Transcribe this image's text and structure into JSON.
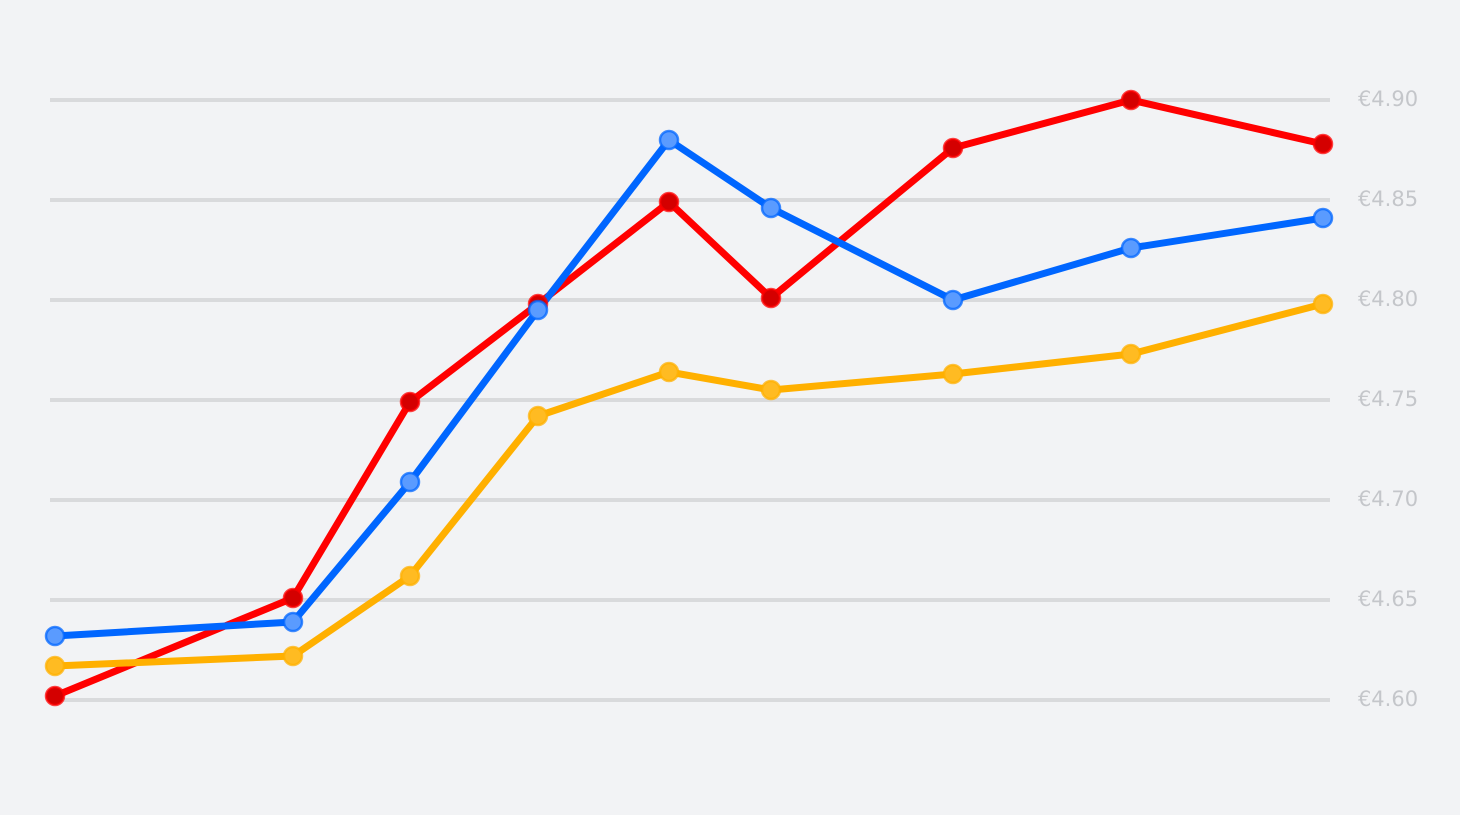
{
  "chart_data": {
    "type": "line",
    "x": [
      0,
      238,
      355,
      483,
      614,
      716,
      898,
      1076,
      1268
    ],
    "xlim": [
      0,
      1268
    ],
    "series": [
      {
        "color": "#ff0000",
        "marker_color": "#d40000",
        "values": [
          4.602,
          4.651,
          4.749,
          4.798,
          4.849,
          4.801,
          4.876,
          4.9,
          4.878
        ]
      },
      {
        "color": "#0066ff",
        "marker_color": "#5a9bff",
        "values": [
          4.632,
          4.639,
          4.709,
          4.795,
          4.88,
          4.846,
          4.8,
          4.826,
          4.841
        ]
      },
      {
        "color": "#ffb000",
        "marker_color": "#ffbb22",
        "values": [
          4.617,
          4.622,
          4.662,
          4.742,
          4.764,
          4.755,
          4.763,
          4.773,
          4.798
        ]
      }
    ],
    "ylim": [
      4.6,
      4.9
    ],
    "yticks": [
      {
        "value": 4.6,
        "label": "€4.60"
      },
      {
        "value": 4.65,
        "label": "€4.65"
      },
      {
        "value": 4.7,
        "label": "€4.70"
      },
      {
        "value": 4.75,
        "label": "€4.75"
      },
      {
        "value": 4.8,
        "label": "€4.80"
      },
      {
        "value": 4.85,
        "label": "€4.85"
      },
      {
        "value": 4.9,
        "label": "€4.90"
      }
    ],
    "grid": true
  }
}
